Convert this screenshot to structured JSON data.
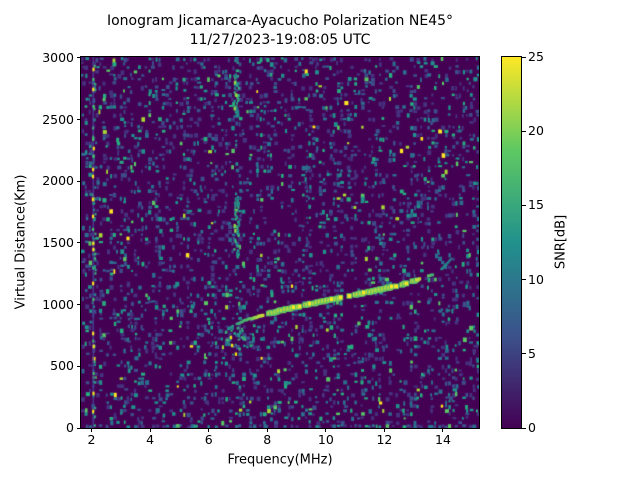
{
  "chart_data": {
    "type": "heatmap",
    "title": "Ionogram Jicamarca-Ayacucho Polarization NE45°",
    "subtitle": "11/27/2023-19:08:05 UTC",
    "xlabel": "Frequency(MHz)",
    "ylabel": "Virtual Distance(Km)",
    "colorbar_label": "SNR[dB]",
    "xlim": [
      1.64,
      15.23
    ],
    "ylim": [
      0,
      3008
    ],
    "clim": [
      0,
      25
    ],
    "x_ticks": [
      2,
      4,
      6,
      8,
      10,
      12,
      14
    ],
    "y_ticks": [
      0,
      500,
      1000,
      1500,
      2000,
      2500,
      3000
    ],
    "colorbar_ticks": [
      0,
      5,
      10,
      15,
      20,
      25
    ],
    "colormap": "viridis",
    "background_color": "#440154",
    "viridis_stops": [
      [
        0,
        "#440154"
      ],
      [
        0.25,
        "#3b528b"
      ],
      [
        0.5,
        "#21918c"
      ],
      [
        0.75,
        "#5ec962"
      ],
      [
        1,
        "#fde725"
      ]
    ],
    "noise": {
      "cell_grid": [
        114,
        93
      ],
      "base_fill_probability": 0.22,
      "column_probability_jitter": 0.13,
      "edge_row_boost": 1.9,
      "colors": [
        [
          "#46327e",
          0.34
        ],
        [
          "#3d4e8a",
          0.22
        ],
        [
          "#2c6e8e",
          0.18
        ],
        [
          "#21918c",
          0.14
        ],
        [
          "#27ad81",
          0.07
        ],
        [
          "#58c765",
          0.03
        ],
        [
          "#a8db34",
          0.012
        ],
        [
          "#fde725",
          0.008
        ]
      ]
    },
    "echo_trace": {
      "description": "F-region echo trace rising from ~6.8 MHz / 820 km to ~14.3 MHz / 1380 km",
      "points_mhz_km": [
        [
          6.78,
          818
        ],
        [
          7.0,
          848
        ],
        [
          7.3,
          876
        ],
        [
          7.6,
          898
        ],
        [
          8.0,
          924
        ],
        [
          8.5,
          954
        ],
        [
          9.0,
          982
        ],
        [
          9.5,
          1008
        ],
        [
          10.0,
          1032
        ],
        [
          10.5,
          1056
        ],
        [
          11.0,
          1080
        ],
        [
          11.5,
          1104
        ],
        [
          12.0,
          1130
        ],
        [
          12.5,
          1158
        ],
        [
          13.0,
          1190
        ],
        [
          13.35,
          1218
        ],
        [
          13.65,
          1246
        ],
        [
          13.95,
          1290
        ],
        [
          14.15,
          1335
        ],
        [
          14.32,
          1380
        ]
      ],
      "snr_db": [
        13,
        15,
        17,
        21,
        24,
        25,
        25,
        25,
        25,
        25,
        25,
        25,
        25,
        25,
        24,
        21,
        16,
        13,
        11,
        9
      ]
    },
    "onset_scatter": {
      "freq_range_mhz": [
        6.58,
        7.25
      ],
      "range_km": [
        540,
        812
      ],
      "count": 30,
      "bright_dots_mhz_km": [
        [
          6.76,
          733
        ],
        [
          6.8,
          668
        ],
        [
          6.93,
          598
        ]
      ]
    },
    "interference_lines": [
      {
        "freq_mhz": 2.06,
        "type": "rfi-column-with-bright-dots",
        "yellow_dots_km": [
          2907,
          2745,
          2266,
          2096,
          2039,
          1853,
          1715,
          1496,
          1447,
          1172,
          766,
          661,
          280,
          134
        ],
        "green_dots_km": [
          2826,
          2607,
          2339,
          2201,
          1610,
          1042,
          442
        ],
        "speckle_count": 45
      },
      {
        "freq_mhz": 6.92,
        "type": "scatter-column",
        "segments_km": [
          [
            2520,
            2870
          ],
          [
            1380,
            1900
          ]
        ],
        "bright_dots_km": [
          2800,
          2700,
          2590,
          1760,
          1640,
          1600
        ],
        "sparse_full_height_count": 16
      },
      {
        "freq_mhz": 9.33,
        "type": "faint-column",
        "segments_km": [
          [
            1450,
            2450
          ]
        ],
        "dot_count": 18
      }
    ]
  }
}
